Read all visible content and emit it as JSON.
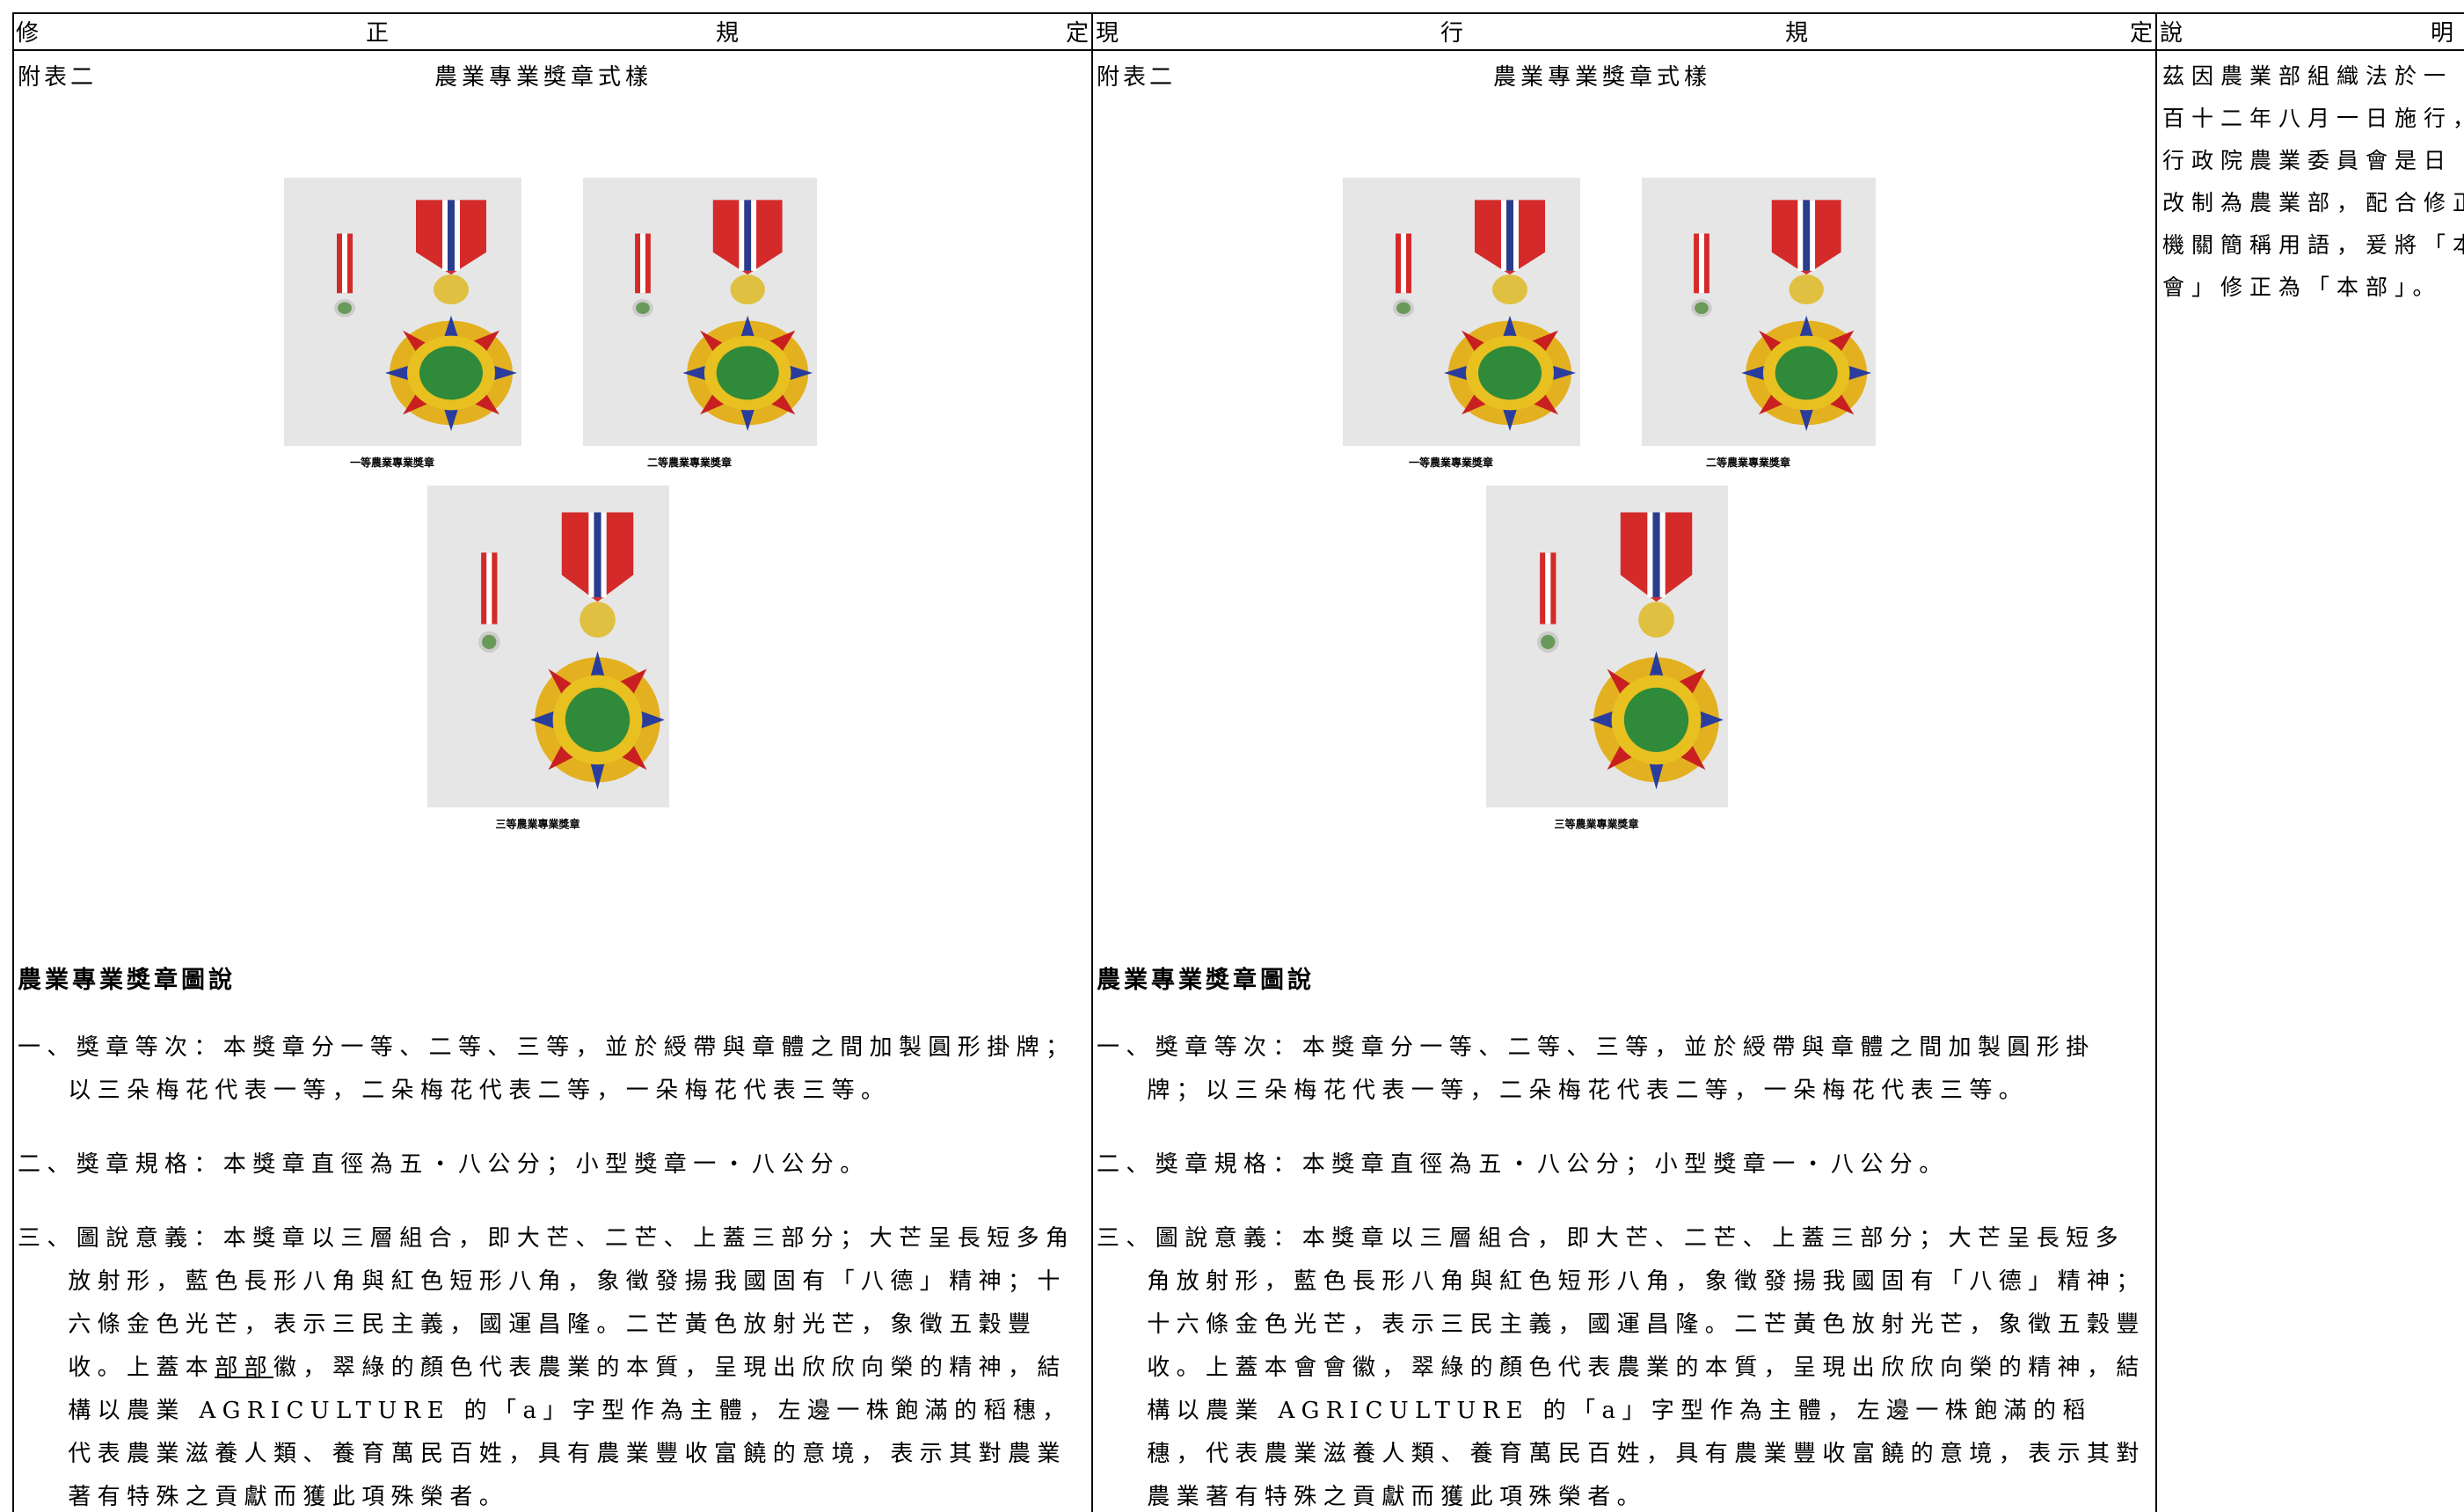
{
  "header": {
    "revised": [
      "修",
      "正",
      "規",
      "定"
    ],
    "current": [
      "現",
      "行",
      "規",
      "定"
    ],
    "note": [
      "說",
      "明"
    ]
  },
  "revised": {
    "appendix": "附表二",
    "title": "農業專業獎章式樣",
    "captions": [
      "一等農業專業獎章",
      "二等農業專業獎章",
      "三等農業專業獎章"
    ],
    "heading": "農業專業獎章圖說",
    "items": [
      "一、獎章等次：本獎章分一等、二等、三等，並於綬帶與章體之間加製圓形掛牌；以三朵梅花代表一等，二朵梅花代表二等，一朵梅花代表三等。",
      "二、獎章規格：本獎章直徑為五・八公分；小型獎章一・八公分。",
      [
        {
          "text": "三、圖說意義：本獎章以三層組合，即大芒、二芒、上蓋三部分；大芒呈長短多角放射形，藍色長形八角與紅色短形八角，象徵發揚我國固有「八德」精神；十六條金色光芒，表示三民主義，國運昌隆。二芒黃色放射光芒，象徵五穀豐收。上蓋本"
        },
        {
          "text": "部部",
          "underline": true
        },
        {
          "text": "徽，翠綠的顏色代表農業的本質，呈現出欣欣向榮的精神，結構以農業 AGRICULTURE 的「a」字型作為主體，左邊一株飽滿的稻穗，代表農業滋養人類、養育萬民百姓，具有農業豐收富饒的意境，表示其對農業著有特殊之貢獻而獲此項殊榮者。"
        }
      ]
    ]
  },
  "current": {
    "appendix": "附表二",
    "title": "農業專業獎章式樣",
    "captions": [
      "一等農業專業獎章",
      "二等農業專業獎章",
      "三等農業專業獎章"
    ],
    "heading": "農業專業獎章圖說",
    "items": [
      "一、獎章等次：本獎章分一等、二等、三等，並於綬帶與章體之間加製圓形掛牌；以三朵梅花代表一等，二朵梅花代表二等，一朵梅花代表三等。",
      "二、獎章規格：本獎章直徑為五・八公分；小型獎章一・八公分。",
      "三、圖說意義：本獎章以三層組合，即大芒、二芒、上蓋三部分；大芒呈長短多角放射形，藍色長形八角與紅色短形八角，象徵發揚我國固有「八德」精神；十六條金色光芒，表示三民主義，國運昌隆。二芒黃色放射光芒，象徵五穀豐收。上蓋本會會徽，翠綠的顏色代表農業的本質，呈現出欣欣向榮的精神，結構以農業 AGRICULTURE 的「a」字型作為主體，左邊一株飽滿的稻穗，代表農業滋養人類、養育萬民百姓，具有農業豐收富饒的意境，表示其對農業著有特殊之貢獻而獲此項殊榮者。"
    ]
  },
  "note": {
    "lines": [
      "茲因農業部組織法於一",
      "百十二年八月一日施行，",
      "行政院農業委員會是日",
      "改制為農業部，配合修正",
      "機關簡稱用語，爰將「本",
      "會」修正為「本部」。"
    ]
  }
}
